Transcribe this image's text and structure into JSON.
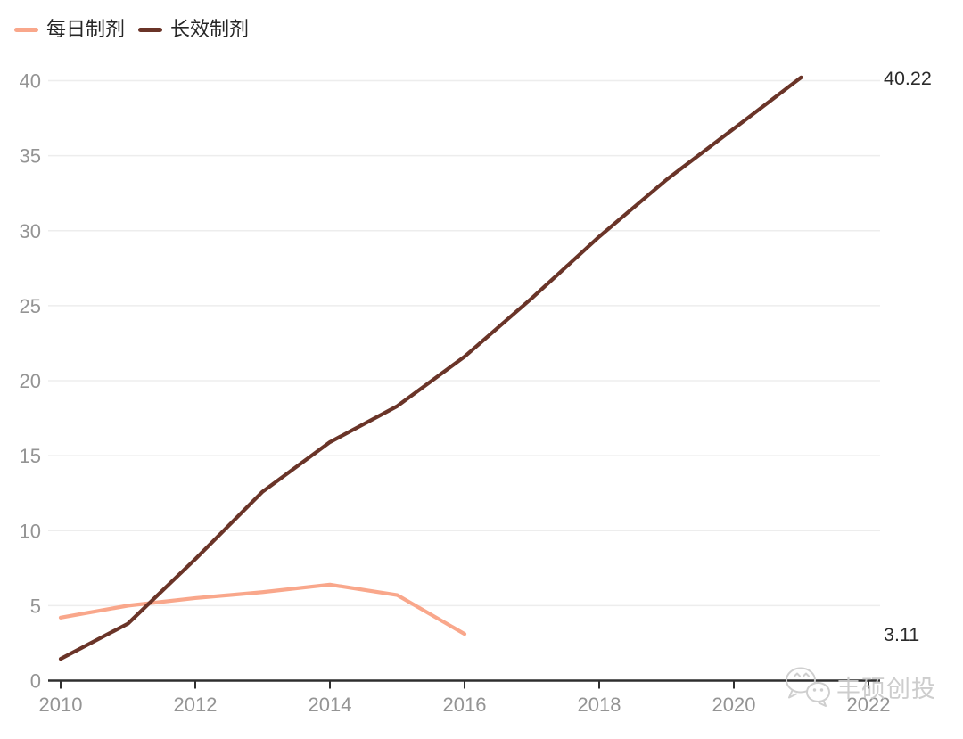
{
  "watermark": {
    "text": "丰硕创投"
  },
  "chart_data": {
    "type": "line",
    "title": "",
    "xlabel": "",
    "ylabel": "",
    "grid": "horizontal",
    "legend_position": "top-left",
    "x_ticks": [
      2010,
      2012,
      2014,
      2016,
      2018,
      2020,
      2022
    ],
    "y_ticks": [
      0,
      5,
      10,
      15,
      20,
      25,
      30,
      35,
      40
    ],
    "xlim": [
      2010,
      2022.2
    ],
    "ylim": [
      0,
      42
    ],
    "colors": {
      "grid": "#ededed",
      "axis": "#2f2f2f",
      "tick_label": "#949494",
      "value_label": "#2b2b2b",
      "watermark": "#cbcbcb"
    },
    "series": [
      {
        "name": "每日制剂",
        "color": "#F9A78B",
        "x": [
          2010,
          2011,
          2012,
          2013,
          2014,
          2015,
          2016
        ],
        "y": [
          4.2,
          5.0,
          5.5,
          5.9,
          6.4,
          5.7,
          3.11
        ],
        "end_label": "3.11"
      },
      {
        "name": "长效制剂",
        "color": "#6A3428",
        "x": [
          2010,
          2011,
          2012,
          2013,
          2014,
          2015,
          2016,
          2017,
          2018,
          2019,
          2020,
          2021
        ],
        "y": [
          1.45,
          3.8,
          8.1,
          12.6,
          15.9,
          18.3,
          21.6,
          25.5,
          29.6,
          33.4,
          36.8,
          40.22
        ],
        "end_label": "40.22"
      }
    ]
  }
}
